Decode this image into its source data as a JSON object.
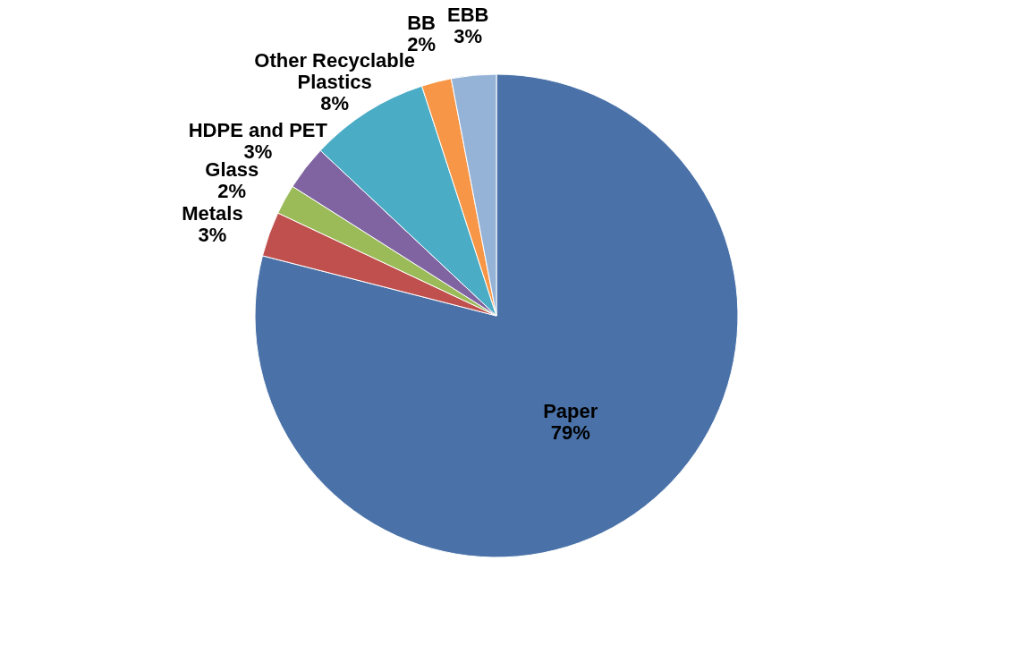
{
  "chart_data": {
    "type": "pie",
    "categories": [
      "Paper",
      "Metals",
      "Glass",
      "HDPE and PET",
      "Other Recyclable Plastics",
      "BB",
      "EBB"
    ],
    "values": [
      79,
      3,
      2,
      3,
      8,
      2,
      3
    ],
    "colors": [
      "#4a72a8",
      "#c0504d",
      "#9bbb59",
      "#8064a2",
      "#4bacc6",
      "#f79646",
      "#95b3d7"
    ],
    "value_labels": [
      "79%",
      "3%",
      "2%",
      "3%",
      "8%",
      "2%",
      "3%"
    ],
    "legend": false
  }
}
